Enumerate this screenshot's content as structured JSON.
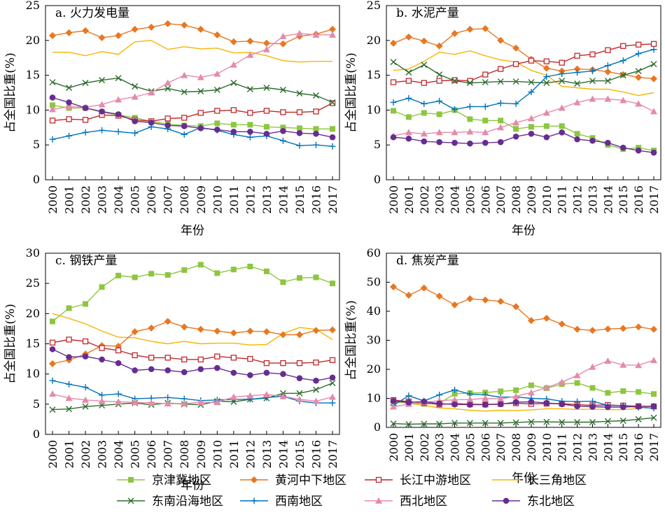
{
  "chart_data": {
    "type": "line",
    "x": [
      "2000",
      "2001",
      "2002",
      "2003",
      "2004",
      "2005",
      "2006",
      "2007",
      "2008",
      "2009",
      "2010",
      "2011",
      "2012",
      "2013",
      "2014",
      "2015",
      "2016",
      "2017"
    ],
    "xlabel": "年份",
    "series_meta": [
      {
        "name": "京津冀地区",
        "color": "#8dc63f",
        "marker": "square"
      },
      {
        "name": "黄河中下地区",
        "color": "#e87722",
        "marker": "diamond"
      },
      {
        "name": "长江中游地区",
        "color": "#c1272d",
        "marker": "open-square"
      },
      {
        "name": "长三角地区",
        "color": "#f7b500",
        "marker": "none"
      },
      {
        "name": "东南沿海地区",
        "color": "#2e6b2e",
        "marker": "x"
      },
      {
        "name": "西南地区",
        "color": "#0072bc",
        "marker": "plus"
      },
      {
        "name": "西北地区",
        "color": "#e58aaa",
        "marker": "triangle"
      },
      {
        "name": "东北地区",
        "color": "#662d91",
        "marker": "circle"
      }
    ],
    "panels": [
      {
        "title": "a. 火力发电量",
        "ylabel": "占全国比重(%)",
        "ylim": [
          0,
          25
        ],
        "yticks": [
          0,
          5,
          10,
          15,
          20,
          25
        ],
        "grid": false,
        "series": [
          {
            "name": "京津冀地区",
            "values": [
              10.7,
              10.3,
              10.3,
              9.7,
              9.3,
              8.9,
              8.4,
              8.0,
              7.8,
              7.7,
              8.1,
              7.9,
              7.9,
              7.6,
              7.5,
              7.4,
              7.3,
              7.3
            ]
          },
          {
            "name": "黄河中下地区",
            "values": [
              20.7,
              21.1,
              21.4,
              20.4,
              20.7,
              21.6,
              21.9,
              22.4,
              22.2,
              21.6,
              20.8,
              19.8,
              19.9,
              19.6,
              19.5,
              20.6,
              20.9,
              21.6
            ]
          },
          {
            "name": "长江中游地区",
            "values": [
              8.5,
              8.7,
              8.6,
              9.3,
              9.2,
              8.6,
              8.4,
              8.8,
              8.9,
              9.6,
              9.9,
              10.0,
              9.6,
              9.9,
              9.7,
              9.7,
              9.8,
              11.0
            ]
          },
          {
            "name": "长三角地区",
            "values": [
              18.3,
              18.3,
              17.8,
              18.4,
              18.0,
              19.8,
              20.0,
              18.7,
              19.1,
              18.8,
              18.9,
              18.2,
              18.3,
              17.8,
              17.1,
              16.9,
              17.0,
              17.0
            ]
          },
          {
            "name": "东南沿海地区",
            "values": [
              14.0,
              13.2,
              13.9,
              14.3,
              14.6,
              13.4,
              12.7,
              13.1,
              12.6,
              12.7,
              12.9,
              13.9,
              13.0,
              13.2,
              12.9,
              12.4,
              12.1,
              11.1
            ]
          },
          {
            "name": "西南地区",
            "values": [
              5.8,
              6.3,
              6.8,
              7.1,
              6.9,
              6.7,
              7.6,
              7.3,
              6.5,
              7.5,
              7.1,
              6.5,
              6.1,
              6.3,
              5.6,
              4.9,
              5.0,
              4.8
            ]
          },
          {
            "name": "西北地区",
            "values": [
              10.1,
              10.5,
              10.4,
              10.8,
              11.5,
              11.9,
              12.5,
              13.9,
              15.0,
              14.7,
              15.2,
              16.5,
              17.9,
              18.7,
              20.6,
              21.0,
              20.8,
              20.8
            ]
          },
          {
            "name": "东北地区",
            "values": [
              11.8,
              11.1,
              10.3,
              9.8,
              9.4,
              8.4,
              8.2,
              7.8,
              7.7,
              7.4,
              7.2,
              6.9,
              6.9,
              6.6,
              7.0,
              6.7,
              6.6,
              6.1
            ]
          }
        ]
      },
      {
        "title": "b. 水泥产量",
        "ylabel": "占全国比重(%)",
        "ylim": [
          0,
          25
        ],
        "yticks": [
          0,
          5,
          10,
          15,
          20,
          25
        ],
        "grid": false,
        "series": [
          {
            "name": "京津冀地区",
            "values": [
              9.9,
              9.0,
              9.6,
              9.4,
              10.0,
              8.7,
              8.5,
              8.5,
              7.3,
              7.6,
              7.7,
              7.7,
              6.6,
              6.0,
              5.0,
              4.4,
              4.6,
              4.2
            ]
          },
          {
            "name": "黄河中下地区",
            "values": [
              19.6,
              20.5,
              19.9,
              19.2,
              21.0,
              21.6,
              21.7,
              20.0,
              18.9,
              17.3,
              16.0,
              15.6,
              15.9,
              15.8,
              15.5,
              15.1,
              14.7,
              14.5
            ]
          },
          {
            "name": "长江中游地区",
            "values": [
              14.0,
              14.2,
              13.9,
              14.2,
              14.3,
              14.2,
              15.1,
              15.9,
              16.6,
              17.1,
              17.0,
              16.8,
              17.8,
              18.0,
              18.6,
              19.2,
              19.4,
              19.5
            ]
          },
          {
            "name": "长三角地区",
            "values": [
              15.7,
              15.9,
              17.0,
              18.3,
              18.0,
              18.5,
              17.8,
              17.2,
              16.9,
              15.7,
              15.0,
              13.4,
              13.2,
              13.0,
              13.0,
              12.6,
              12.1,
              12.5
            ]
          },
          {
            "name": "东南沿海地区",
            "values": [
              16.9,
              15.4,
              16.5,
              15.1,
              14.2,
              13.9,
              14.0,
              14.1,
              14.1,
              14.0,
              13.9,
              14.2,
              13.8,
              14.2,
              14.2,
              15.0,
              15.6,
              16.6
            ]
          },
          {
            "name": "西南地区",
            "values": [
              11.1,
              11.7,
              10.9,
              11.3,
              10.1,
              10.5,
              10.5,
              11.0,
              10.9,
              12.6,
              14.8,
              15.2,
              15.4,
              15.6,
              16.4,
              17.1,
              18.1,
              18.7
            ]
          },
          {
            "name": "西北地区",
            "values": [
              6.3,
              6.8,
              6.6,
              6.8,
              6.8,
              6.9,
              6.8,
              7.5,
              8.2,
              8.8,
              9.6,
              10.3,
              11.1,
              11.6,
              11.6,
              11.4,
              10.9,
              9.8
            ]
          },
          {
            "name": "东北地区",
            "values": [
              6.1,
              5.9,
              5.5,
              5.4,
              5.3,
              5.2,
              5.3,
              5.4,
              6.2,
              6.6,
              6.1,
              6.8,
              5.8,
              5.6,
              5.3,
              4.6,
              4.2,
              3.9
            ]
          }
        ]
      },
      {
        "title": "c. 钢铁产量",
        "ylabel": "占全国比重(%)",
        "ylim": [
          0,
          30
        ],
        "yticks": [
          0,
          5,
          10,
          15,
          20,
          25,
          30
        ],
        "grid": false,
        "series": [
          {
            "name": "京津冀地区",
            "values": [
              18.7,
              20.9,
              21.6,
              24.4,
              26.3,
              26.0,
              26.6,
              26.4,
              27.2,
              28.1,
              26.7,
              27.3,
              27.8,
              27.0,
              25.2,
              25.9,
              26.0,
              25.0
            ]
          },
          {
            "name": "黄河中下地区",
            "values": [
              11.7,
              12.3,
              13.3,
              14.7,
              14.6,
              17.0,
              17.6,
              18.7,
              17.8,
              17.4,
              17.1,
              16.8,
              17.1,
              17.0,
              16.5,
              16.5,
              17.2,
              17.3
            ]
          },
          {
            "name": "长江中游地区",
            "values": [
              15.2,
              15.7,
              15.4,
              14.3,
              13.9,
              13.1,
              12.7,
              12.7,
              12.4,
              12.4,
              12.9,
              12.7,
              12.5,
              11.8,
              11.8,
              11.8,
              11.9,
              12.3
            ]
          },
          {
            "name": "长三角地区",
            "values": [
              20.0,
              19.2,
              18.3,
              17.1,
              16.1,
              16.0,
              15.4,
              15.0,
              15.4,
              15.0,
              15.1,
              15.1,
              14.8,
              14.9,
              16.7,
              17.7,
              17.4,
              15.7
            ]
          },
          {
            "name": "东南沿海地区",
            "values": [
              4.1,
              4.2,
              4.6,
              4.8,
              5.0,
              5.2,
              4.9,
              5.2,
              5.0,
              4.9,
              5.5,
              5.4,
              5.8,
              6.0,
              6.8,
              6.8,
              7.4,
              8.5
            ]
          },
          {
            "name": "西南地区",
            "values": [
              8.9,
              8.3,
              7.8,
              6.5,
              6.7,
              5.9,
              6.0,
              6.1,
              5.9,
              5.6,
              5.7,
              5.8,
              5.8,
              6.1,
              6.3,
              5.5,
              5.2,
              5.2
            ]
          },
          {
            "name": "西北地区",
            "values": [
              6.7,
              6.0,
              5.7,
              5.5,
              5.4,
              5.3,
              5.2,
              5.1,
              5.1,
              5.3,
              5.3,
              6.2,
              6.4,
              6.6,
              6.3,
              5.8,
              5.5,
              6.2
            ]
          },
          {
            "name": "东北地区",
            "values": [
              14.1,
              12.8,
              12.9,
              12.4,
              11.8,
              10.6,
              10.8,
              10.6,
              10.3,
              10.8,
              11.0,
              10.2,
              9.8,
              10.2,
              10.0,
              9.3,
              8.9,
              9.4
            ]
          }
        ]
      },
      {
        "title": "d. 焦炭产量",
        "ylabel": "占全国比重(%)",
        "ylim": [
          0,
          60
        ],
        "yticks": [
          0,
          10,
          20,
          30,
          40,
          50,
          60
        ],
        "grid": false,
        "series": [
          {
            "name": "京津冀地区",
            "values": [
              8.8,
              8.4,
              8.1,
              8.2,
              11.6,
              11.8,
              12.0,
              12.4,
              12.8,
              14.5,
              13.5,
              14.9,
              15.3,
              13.6,
              11.9,
              12.5,
              12.2,
              11.5
            ]
          },
          {
            "name": "黄河中下地区",
            "values": [
              48.4,
              45.5,
              48.0,
              45.2,
              42.2,
              44.3,
              43.9,
              43.4,
              41.6,
              36.8,
              37.6,
              35.6,
              33.8,
              33.4,
              33.9,
              34.1,
              34.6,
              33.8
            ]
          },
          {
            "name": "长江中游地区",
            "values": [
              9.4,
              8.9,
              8.4,
              7.9,
              8.2,
              8.0,
              7.9,
              8.1,
              8.3,
              8.1,
              8.2,
              8.2,
              7.8,
              7.6,
              7.7,
              7.5,
              7.3,
              7.2
            ]
          },
          {
            "name": "长三角地区",
            "values": [
              8.9,
              8.3,
              7.6,
              6.7,
              6.4,
              5.9,
              5.6,
              5.9,
              5.8,
              6.0,
              6.4,
              6.4,
              6.2,
              6.3,
              6.1,
              6.1,
              6.5,
              7.5
            ]
          },
          {
            "name": "东南沿海地区",
            "values": [
              1.3,
              1.1,
              1.2,
              1.2,
              1.5,
              1.5,
              1.5,
              1.5,
              1.7,
              1.9,
              1.9,
              1.8,
              1.8,
              1.8,
              2.1,
              2.3,
              2.8,
              3.3
            ]
          },
          {
            "name": "西南地区",
            "values": [
              7.6,
              10.9,
              9.1,
              11.2,
              12.9,
              11.5,
              11.2,
              10.4,
              10.5,
              10.0,
              9.8,
              9.0,
              8.9,
              9.0,
              7.6,
              7.5,
              6.9,
              6.6
            ]
          },
          {
            "name": "西北地区",
            "values": [
              7.1,
              8.0,
              8.6,
              9.2,
              9.5,
              9.6,
              10.0,
              9.8,
              10.7,
              12.0,
              13.7,
              15.6,
              17.9,
              20.8,
              22.9,
              21.5,
              21.4,
              23.1
            ]
          },
          {
            "name": "东北地区",
            "values": [
              9.1,
              8.6,
              8.9,
              8.2,
              7.9,
              7.8,
              7.8,
              8.0,
              8.7,
              8.8,
              8.4,
              8.0,
              7.3,
              7.1,
              7.0,
              7.0,
              7.2,
              7.3
            ]
          }
        ]
      }
    ],
    "legend": {
      "placement": "bottom",
      "entries": [
        "京津冀地区",
        "黄河中下地区",
        "长江中游地区",
        "长三角地区",
        "东南沿海地区",
        "西南地区",
        "西北地区",
        "东北地区"
      ]
    }
  }
}
